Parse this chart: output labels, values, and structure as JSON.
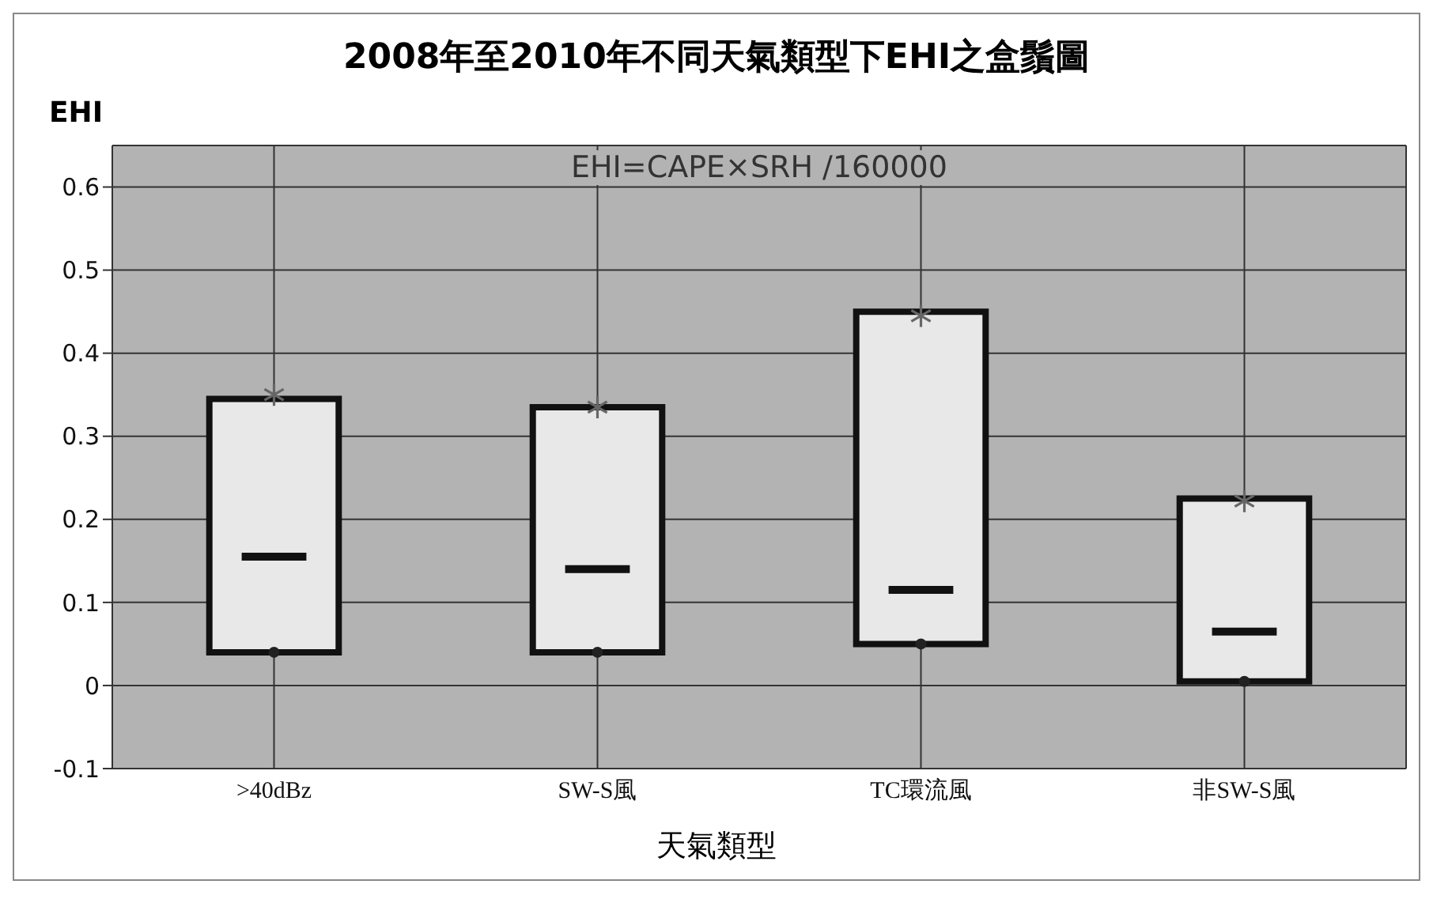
{
  "chart_data": {
    "type": "box",
    "title": "2008年至2010年不同天氣類型下EHI之盒鬚圖",
    "xlabel": "天氣類型",
    "ylabel": "EHI",
    "annotations": [
      "EHI=CAPE×SRH /160000"
    ],
    "categories": [
      ">40dBz",
      "SW-S風",
      "TC環流風",
      "非SW-S風"
    ],
    "series": [
      {
        "color": "#e8e8e8",
        "boxes": [
          {
            "low": 0.04,
            "q1": 0.04,
            "median": 0.155,
            "q3": 0.345,
            "high": 0.345
          },
          {
            "low": 0.04,
            "q1": 0.04,
            "median": 0.14,
            "q3": 0.335,
            "high": 0.335
          },
          {
            "low": 0.05,
            "q1": 0.05,
            "median": 0.115,
            "q3": 0.45,
            "high": 0.45
          },
          {
            "low": 0.005,
            "q1": 0.005,
            "median": 0.065,
            "q3": 0.225,
            "high": 0.225
          }
        ]
      },
      {
        "type": "scatter",
        "marker": "cross",
        "color": "#666666",
        "x": [
          ">40dBz",
          "SW-S風",
          "TC環流風",
          "非SW-S風"
        ],
        "values": [
          0.35,
          0.335,
          0.445,
          0.222
        ]
      },
      {
        "type": "scatter",
        "marker": "circle",
        "color": "#222222",
        "x": [
          ">40dBz",
          "SW-S風",
          "TC環流風",
          "非SW-S風"
        ],
        "values": [
          0.04,
          0.04,
          0.05,
          0.005
        ]
      }
    ],
    "ylim": [
      -0.1,
      0.65
    ],
    "yticks": [
      -0.1,
      0,
      0.1,
      0.2,
      0.3,
      0.4,
      0.5,
      0.6
    ],
    "grid": true
  }
}
